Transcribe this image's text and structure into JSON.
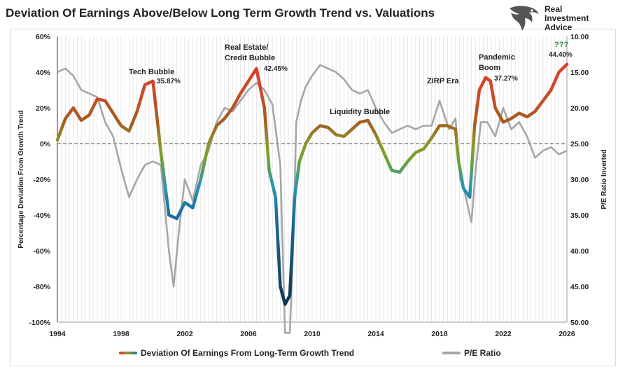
{
  "header": {
    "title": "Deviation Of Earnings Above/Below Long Term Growth Trend vs. Valuations"
  },
  "logo": {
    "line1": "Real",
    "line2": "Investment",
    "line3": "Advice"
  },
  "legend": {
    "series1": "Deviation Of Earnings From Long-Term Growth Trend",
    "series2": "P/E Ratio"
  },
  "colors": {
    "gradient_high": "#e2312a",
    "gradient_mid": "#8a9a2a",
    "gradient_low": "#1b6fa3",
    "gradient_bottom": "#0d2a3f",
    "pe_line": "#a6a6a6",
    "zero_line": "#888888"
  },
  "chart_data": {
    "type": "line",
    "title": "Deviation Of Earnings Above/Below Long Term Growth Trend vs. Valuations",
    "ylabel": "Percentage Deviation From Growth Trend",
    "y2label": "P/E Ratio Inverted",
    "xlim": [
      1994,
      2026
    ],
    "ylim": [
      -100,
      60
    ],
    "y2lim": [
      10,
      50
    ],
    "y2_inverted": true,
    "x_ticks": [
      "1994",
      "1998",
      "2002",
      "2006",
      "2010",
      "2014",
      "2018",
      "2022",
      "2026"
    ],
    "y_ticks": [
      "60%",
      "40%",
      "20%",
      "0%",
      "-20%",
      "-40%",
      "-60%",
      "-80%",
      "-100%"
    ],
    "y2_ticks": [
      "10.00",
      "15.00",
      "20.00",
      "25.00",
      "30.00",
      "35.00",
      "40.00",
      "45.00",
      "50.00"
    ],
    "grid": "vertical",
    "legend_position": "bottom",
    "series": [
      {
        "name": "Deviation Of Earnings From Long-Term Growth Trend",
        "x": [
          1994.0,
          1994.5,
          1995.0,
          1995.5,
          1996.0,
          1996.5,
          1997.0,
          1997.5,
          1998.0,
          1998.5,
          1999.0,
          1999.5,
          2000.0,
          2000.5,
          2001.0,
          2001.5,
          2002.0,
          2002.5,
          2003.0,
          2003.5,
          2004.0,
          2004.5,
          2005.0,
          2005.5,
          2006.0,
          2006.5,
          2007.0,
          2007.3,
          2007.7,
          2008.0,
          2008.3,
          2008.6,
          2008.9,
          2009.2,
          2009.6,
          2010.0,
          2010.5,
          2011.0,
          2011.5,
          2012.0,
          2012.5,
          2013.0,
          2013.5,
          2014.0,
          2014.5,
          2015.0,
          2015.5,
          2016.0,
          2016.5,
          2017.0,
          2017.5,
          2018.0,
          2018.5,
          2019.0,
          2019.2,
          2019.5,
          2019.9,
          2020.2,
          2020.5,
          2020.9,
          2021.2,
          2021.5,
          2022.0,
          2022.5,
          2023.0,
          2023.5,
          2024.0,
          2024.5,
          2025.0,
          2025.5,
          2026.0
        ],
        "values": [
          2,
          14,
          20,
          13,
          16,
          25,
          24,
          17,
          10,
          7,
          18,
          33,
          35,
          -5,
          -40,
          -42,
          -33,
          -36,
          -20,
          0,
          10,
          14,
          20,
          28,
          35,
          42,
          20,
          -15,
          -30,
          -80,
          -90,
          -85,
          -30,
          -10,
          0,
          6,
          10,
          9,
          5,
          4,
          8,
          12,
          13,
          5,
          -5,
          -15,
          -16,
          -10,
          -5,
          -3,
          3,
          10,
          10,
          8,
          -10,
          -25,
          -30,
          10,
          30,
          37,
          35,
          20,
          12,
          14,
          17,
          15,
          18,
          24,
          30,
          40,
          44.4
        ]
      },
      {
        "name": "P/E Ratio",
        "x": [
          1994.0,
          1994.5,
          1995.0,
          1995.5,
          1996.0,
          1996.5,
          1997.0,
          1997.5,
          1998.0,
          1998.5,
          1999.0,
          1999.5,
          2000.0,
          2000.5,
          2001.0,
          2001.3,
          2001.6,
          2002.0,
          2002.5,
          2003.0,
          2003.5,
          2004.0,
          2004.5,
          2005.0,
          2005.5,
          2006.0,
          2006.5,
          2007.0,
          2007.5,
          2008.0,
          2008.3,
          2008.6,
          2008.8,
          2009.0,
          2009.3,
          2009.6,
          2010.0,
          2010.5,
          2011.0,
          2011.5,
          2012.0,
          2012.5,
          2013.0,
          2013.5,
          2014.0,
          2014.5,
          2015.0,
          2015.5,
          2016.0,
          2016.5,
          2017.0,
          2017.5,
          2018.0,
          2018.3,
          2018.6,
          2019.0,
          2019.3,
          2019.6,
          2020.0,
          2020.3,
          2020.6,
          2021.0,
          2021.5,
          2022.0,
          2022.5,
          2023.0,
          2023.5,
          2024.0,
          2024.5,
          2025.0,
          2025.5,
          2026.0
        ],
        "values": [
          15.0,
          14.5,
          15.5,
          17.5,
          18.0,
          18.5,
          22.0,
          24.0,
          28.5,
          32.5,
          30.0,
          28.0,
          27.5,
          28.0,
          40.0,
          45.0,
          38.0,
          30.0,
          33.0,
          28.0,
          26.0,
          22.0,
          20.0,
          20.5,
          19.0,
          17.5,
          16.5,
          17.5,
          19.5,
          28.0,
          52.0,
          52.0,
          40.0,
          22.0,
          19.0,
          17.0,
          15.5,
          14.0,
          14.5,
          15.0,
          16.0,
          17.5,
          18.0,
          17.5,
          20.0,
          22.0,
          23.5,
          23.0,
          22.5,
          23.0,
          22.5,
          22.5,
          19.0,
          21.0,
          23.0,
          21.5,
          30.0,
          32.0,
          36.0,
          28.0,
          22.0,
          22.0,
          24.0,
          20.0,
          23.0,
          22.0,
          24.0,
          27.0,
          26.0,
          25.5,
          26.5,
          26.0
        ]
      }
    ],
    "annotations": [
      {
        "label": "Tech Bubble",
        "value_label": "35.87%",
        "x": 2000.0,
        "y": 35.87
      },
      {
        "label": "Real Estate/",
        "label2": "Credit Bubble",
        "value_label": "42.45%",
        "x": 2006.6,
        "y": 42.45
      },
      {
        "label": "Liquidity Bubble",
        "x": 2012.5,
        "y": 13
      },
      {
        "label": "ZIRP Era",
        "x": 2018.0,
        "y": 30
      },
      {
        "label": "Pandemic",
        "label2": "Boom",
        "value_label": "37.27%",
        "x": 2020.9,
        "y": 37.27
      },
      {
        "label": "???",
        "value_label": "44.40%",
        "x": 2026.0,
        "y": 44.4
      }
    ]
  }
}
